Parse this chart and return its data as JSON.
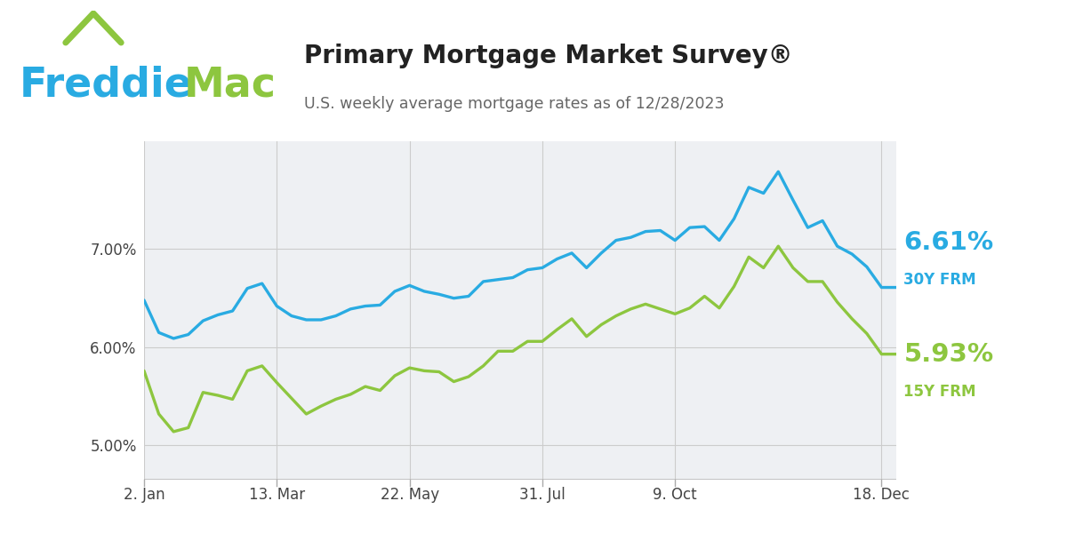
{
  "title": "Primary Mortgage Market Survey®",
  "subtitle": "U.S. weekly average mortgage rates as of 12/28/2023",
  "freddie_color": "#29abe2",
  "mac_color": "#8dc63f",
  "line_30y_color": "#29abe2",
  "line_15y_color": "#8dc63f",
  "label_30y": "6.61%",
  "label_30y_sub": "30Y FRM",
  "label_15y": "5.93%",
  "label_15y_sub": "15Y FRM",
  "plot_bg": "#eef0f3",
  "yticks": [
    5.0,
    6.0,
    7.0
  ],
  "ylim": [
    4.65,
    8.1
  ],
  "xtick_labels": [
    "2. Jan",
    "13. Mar",
    "22. May",
    "31. Jul",
    "9. Oct",
    "18. Dec"
  ],
  "tick_positions": [
    1,
    10,
    19,
    28,
    37,
    51
  ],
  "rates_30y": [
    6.48,
    6.15,
    6.09,
    6.13,
    6.27,
    6.33,
    6.37,
    6.6,
    6.65,
    6.42,
    6.32,
    6.28,
    6.28,
    6.32,
    6.39,
    6.42,
    6.43,
    6.57,
    6.63,
    6.57,
    6.54,
    6.5,
    6.52,
    6.67,
    6.69,
    6.71,
    6.79,
    6.81,
    6.9,
    6.96,
    6.81,
    6.96,
    7.09,
    7.12,
    7.18,
    7.19,
    7.09,
    7.22,
    7.23,
    7.09,
    7.31,
    7.63,
    7.57,
    7.79,
    7.5,
    7.22,
    7.29,
    7.03,
    6.95,
    6.82,
    6.61,
    6.61
  ],
  "rates_15y": [
    5.76,
    5.32,
    5.14,
    5.18,
    5.54,
    5.51,
    5.47,
    5.76,
    5.81,
    5.64,
    5.48,
    5.32,
    5.4,
    5.47,
    5.52,
    5.6,
    5.56,
    5.71,
    5.79,
    5.76,
    5.75,
    5.65,
    5.7,
    5.81,
    5.96,
    5.96,
    6.06,
    6.06,
    6.18,
    6.29,
    6.11,
    6.23,
    6.32,
    6.39,
    6.44,
    6.39,
    6.34,
    6.4,
    6.52,
    6.4,
    6.62,
    6.92,
    6.81,
    7.03,
    6.81,
    6.67,
    6.67,
    6.46,
    6.29,
    6.14,
    5.93,
    5.93
  ]
}
